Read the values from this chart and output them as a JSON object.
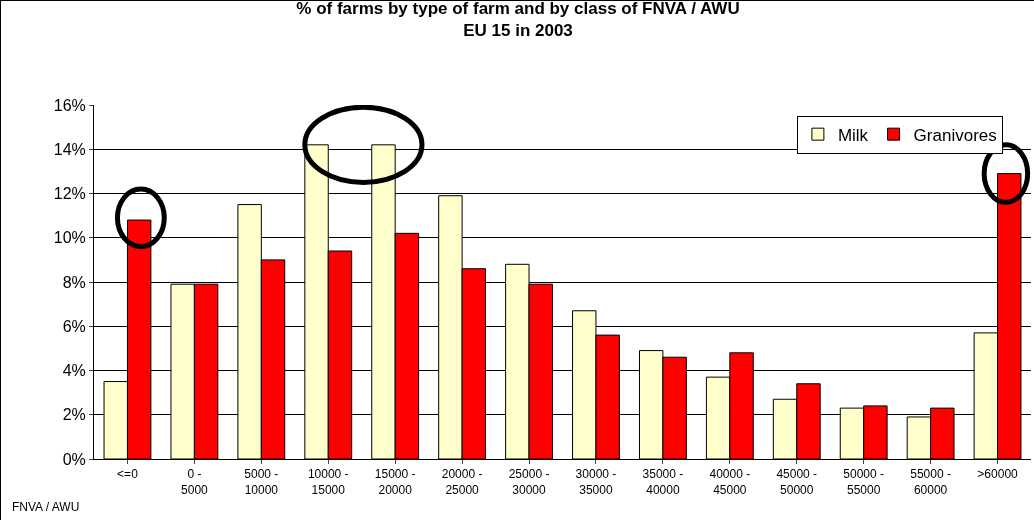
{
  "chart_data": {
    "type": "bar",
    "title": "% of farms by type of farm and by class of FNVA / AWU\nEU 15 in 2003",
    "xlabel": "FNVA / AWU",
    "categories": [
      "<=0",
      "0 - 5000",
      "5000 - 10000",
      "10000 - 15000",
      "15000 - 20000",
      "20000 - 25000",
      "25000 - 30000",
      "30000 - 35000",
      "35000 - 40000",
      "40000 - 45000",
      "45000 - 50000",
      "50000 - 55000",
      "55000 - 60000",
      ">60000"
    ],
    "series": [
      {
        "name": "Milk",
        "color": "#ffffcc",
        "values": [
          3.5,
          7.9,
          11.5,
          14.2,
          14.2,
          11.9,
          8.8,
          6.7,
          4.9,
          3.7,
          2.7,
          2.3,
          1.9,
          5.7
        ]
      },
      {
        "name": "Granivores",
        "color": "#ff0000",
        "values": [
          10.8,
          7.9,
          9.0,
          9.4,
          10.2,
          8.6,
          7.9,
          5.6,
          4.6,
          4.8,
          3.4,
          2.4,
          2.3,
          12.9
        ]
      }
    ],
    "ylim": [
      0,
      16
    ],
    "yticks": [
      {
        "value": 0,
        "label": "0%"
      },
      {
        "value": 2,
        "label": "2%"
      },
      {
        "value": 4,
        "label": "4%"
      },
      {
        "value": 6,
        "label": "6%"
      },
      {
        "value": 8,
        "label": "8%"
      },
      {
        "value": 10,
        "label": "10%"
      },
      {
        "value": 12,
        "label": "12%"
      },
      {
        "value": 14,
        "label": "14%"
      },
      {
        "value": 16,
        "label": "16%"
      }
    ],
    "grid": "y",
    "legend": "top right"
  }
}
